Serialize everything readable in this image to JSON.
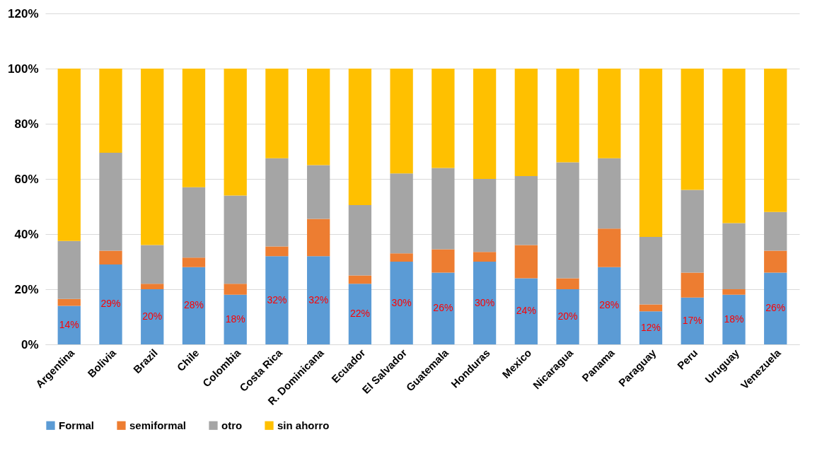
{
  "chart_data": {
    "type": "bar",
    "stacked": true,
    "categories": [
      "Argentina",
      "Bolivia",
      "Brazil",
      "Chile",
      "Colombia",
      "Costa Rica",
      "R. Dominicana",
      "Ecuador",
      "El Salvador",
      "Guatemala",
      "Honduras",
      "Mexico",
      "Nicaragua",
      "Panama",
      "Paraguay",
      "Peru",
      "Uruguay",
      "Venezuela"
    ],
    "series": [
      {
        "name": "Formal",
        "color": "#5b9bd5",
        "values": [
          14,
          29,
          20,
          28,
          18,
          32,
          32,
          22,
          30,
          26,
          30,
          24,
          20,
          28,
          12,
          17,
          18,
          26
        ],
        "value_labels": [
          "14%",
          "29%",
          "20%",
          "28%",
          "18%",
          "32%",
          "32%",
          "22%",
          "30%",
          "26%",
          "30%",
          "24%",
          "20%",
          "28%",
          "12%",
          "17%",
          "18%",
          "26%"
        ]
      },
      {
        "name": "semiformal",
        "color": "#ed7d31",
        "values": [
          2.5,
          5,
          2,
          3.5,
          4,
          3.5,
          13.5,
          3,
          3,
          8.5,
          3.5,
          12,
          4,
          14,
          2.5,
          9,
          2,
          8
        ]
      },
      {
        "name": "otro",
        "color": "#a5a5a5",
        "values": [
          21,
          35.5,
          14,
          25.5,
          32,
          32,
          19.5,
          25.5,
          29,
          29.5,
          26.5,
          25,
          42,
          25.5,
          24.5,
          30,
          24,
          14
        ]
      },
      {
        "name": "sin ahorro",
        "color": "#ffc000",
        "values": [
          62.5,
          30.5,
          64,
          43,
          46,
          32.5,
          35,
          49.5,
          38,
          36,
          40,
          39,
          34,
          32.5,
          61,
          44,
          56,
          52
        ]
      }
    ],
    "ylim": [
      0,
      120
    ],
    "yticks": [
      {
        "value": 0,
        "label": "0%"
      },
      {
        "value": 20,
        "label": "20%"
      },
      {
        "value": 40,
        "label": "40%"
      },
      {
        "value": 60,
        "label": "60%"
      },
      {
        "value": 80,
        "label": "80%"
      },
      {
        "value": 100,
        "label": "100%"
      },
      {
        "value": 120,
        "label": "120%"
      }
    ],
    "grid": "y",
    "legend": "bottom"
  }
}
